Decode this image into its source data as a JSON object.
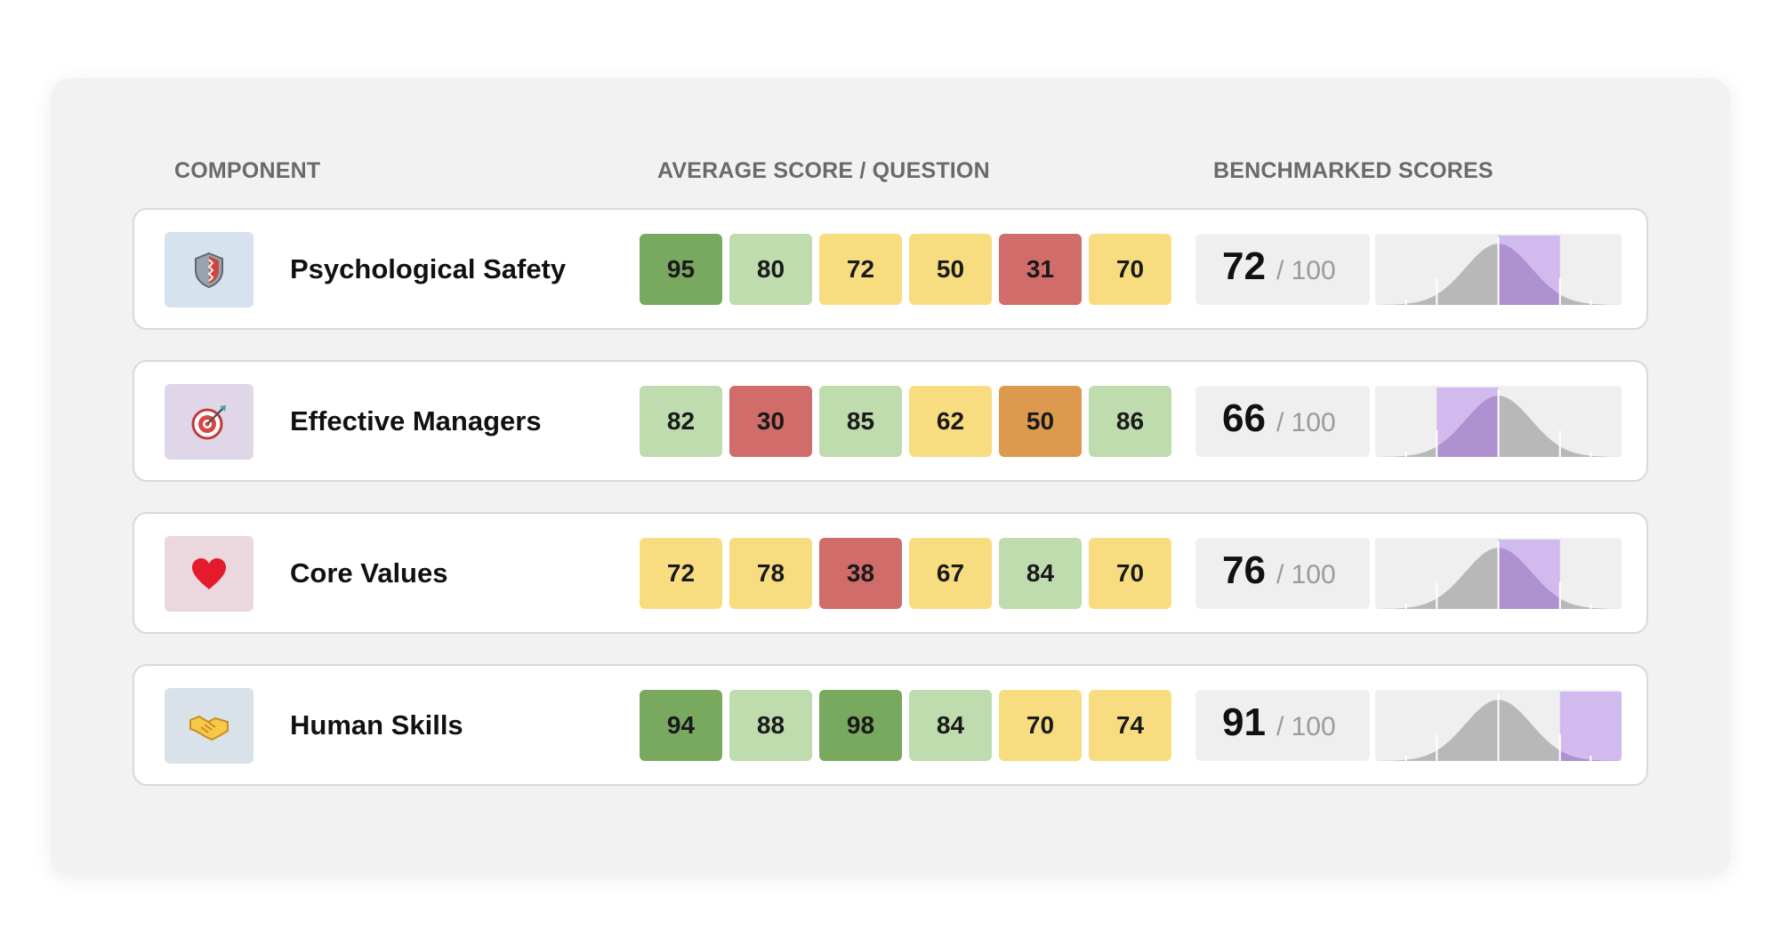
{
  "headers": {
    "component": "COMPONENT",
    "average": "AVERAGE SCORE / QUESTION",
    "benchmarked": "BENCHMARKED SCORES"
  },
  "colors": {
    "dark_green": "#79a95f",
    "light_green": "#bedcae",
    "yellow": "#f8dd80",
    "orange": "#dd9a4e",
    "red": "#d06d6b",
    "curve_gray": "#b8b8b8",
    "highlight_purple": "#c7a8ee"
  },
  "rows": [
    {
      "name": "Psychological Safety",
      "icon": "shield-icon",
      "tile_color": "#d7e2ef",
      "scores": [
        "95",
        "80",
        "72",
        "50",
        "31",
        "70"
      ],
      "levels": [
        "dark_green",
        "light_green",
        "yellow",
        "yellow",
        "red",
        "yellow"
      ],
      "bench": "72",
      "bench_max": "/ 100",
      "highlight": {
        "from": 0.5,
        "to": 0.75
      }
    },
    {
      "name": "Effective Managers",
      "icon": "target-icon",
      "tile_color": "#dfd7e8",
      "scores": [
        "82",
        "30",
        "85",
        "62",
        "50",
        "86"
      ],
      "levels": [
        "light_green",
        "red",
        "light_green",
        "yellow",
        "orange",
        "light_green"
      ],
      "bench": "66",
      "bench_max": "/ 100",
      "highlight": {
        "from": 0.25,
        "to": 0.5
      }
    },
    {
      "name": "Core Values",
      "icon": "heart-icon",
      "tile_color": "#ead8de",
      "scores": [
        "72",
        "78",
        "38",
        "67",
        "84",
        "70"
      ],
      "levels": [
        "yellow",
        "yellow",
        "red",
        "yellow",
        "light_green",
        "yellow"
      ],
      "bench": "76",
      "bench_max": "/ 100",
      "highlight": {
        "from": 0.5,
        "to": 0.75
      }
    },
    {
      "name": "Human Skills",
      "icon": "handshake-icon",
      "tile_color": "#d9e2e8",
      "scores": [
        "94",
        "88",
        "98",
        "84",
        "70",
        "74"
      ],
      "levels": [
        "dark_green",
        "light_green",
        "dark_green",
        "light_green",
        "yellow",
        "yellow"
      ],
      "bench": "91",
      "bench_max": "/ 100",
      "highlight": {
        "from": 0.75,
        "to": 1.0
      }
    }
  ]
}
